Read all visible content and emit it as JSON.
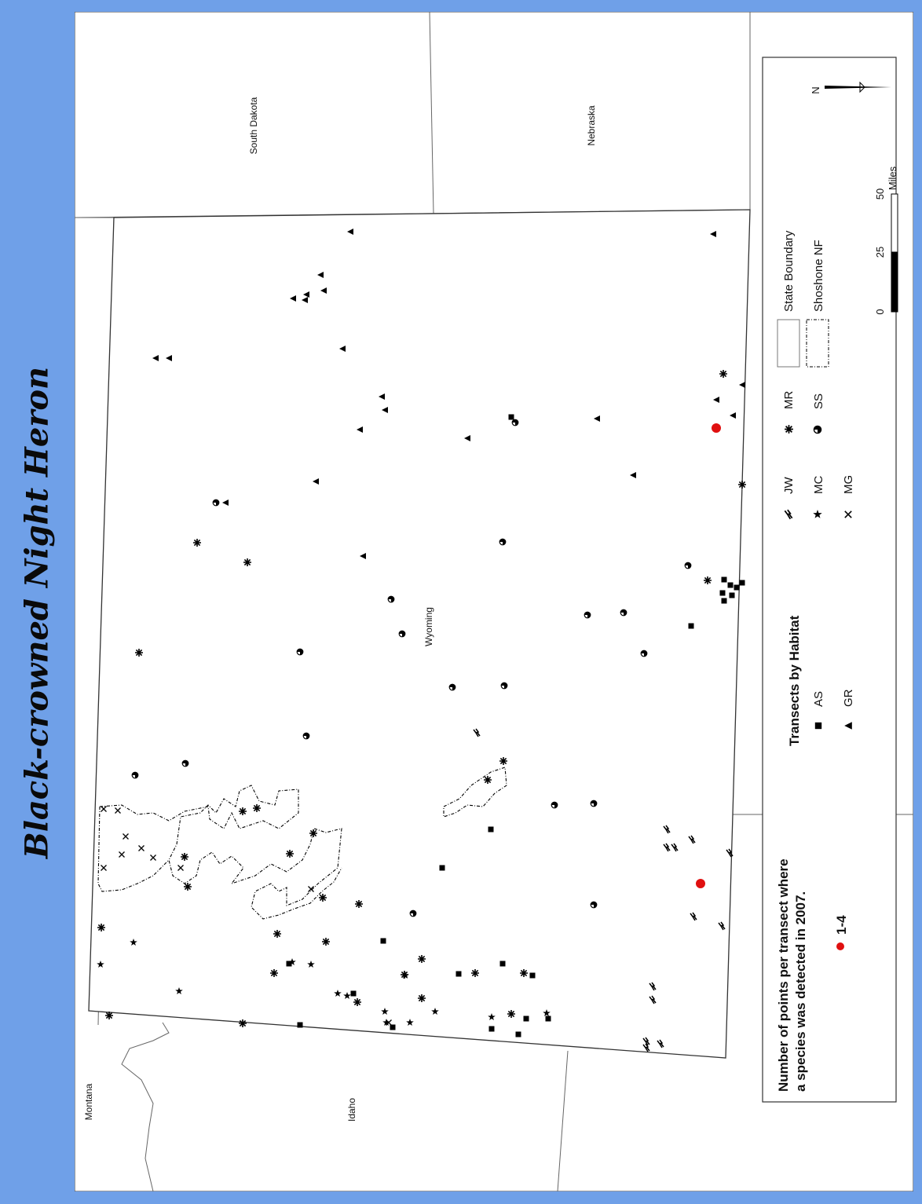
{
  "title": "Black-crowned Night Heron",
  "states": {
    "south_dakota": "South Dakota",
    "nebraska": "Nebraska",
    "montana": "Montana",
    "idaho": "Idaho",
    "wyoming": "Wyoming"
  },
  "legend": {
    "points_heading_line1": "Number of points per transect where",
    "points_heading_line2": "a species was detected in 2007.",
    "points_class": "1-4",
    "points_color": "#e01010",
    "habitat_heading": "Transects by Habitat",
    "habitats": [
      {
        "code": "AS",
        "icon": "square-icon"
      },
      {
        "code": "GR",
        "icon": "triangle-icon"
      },
      {
        "code": "JW",
        "icon": "lightning-icon"
      },
      {
        "code": "MC",
        "icon": "star-icon"
      },
      {
        "code": "MG",
        "icon": "x-icon"
      },
      {
        "code": "MR",
        "icon": "asterisk-icon"
      },
      {
        "code": "SS",
        "icon": "half-circle-icon"
      }
    ],
    "boundary_state": "State Boundary",
    "boundary_nf": "Shoshone NF"
  },
  "scale": {
    "ticks": [
      "0",
      "25",
      "50"
    ],
    "unit": "Miles"
  },
  "north": "N"
}
